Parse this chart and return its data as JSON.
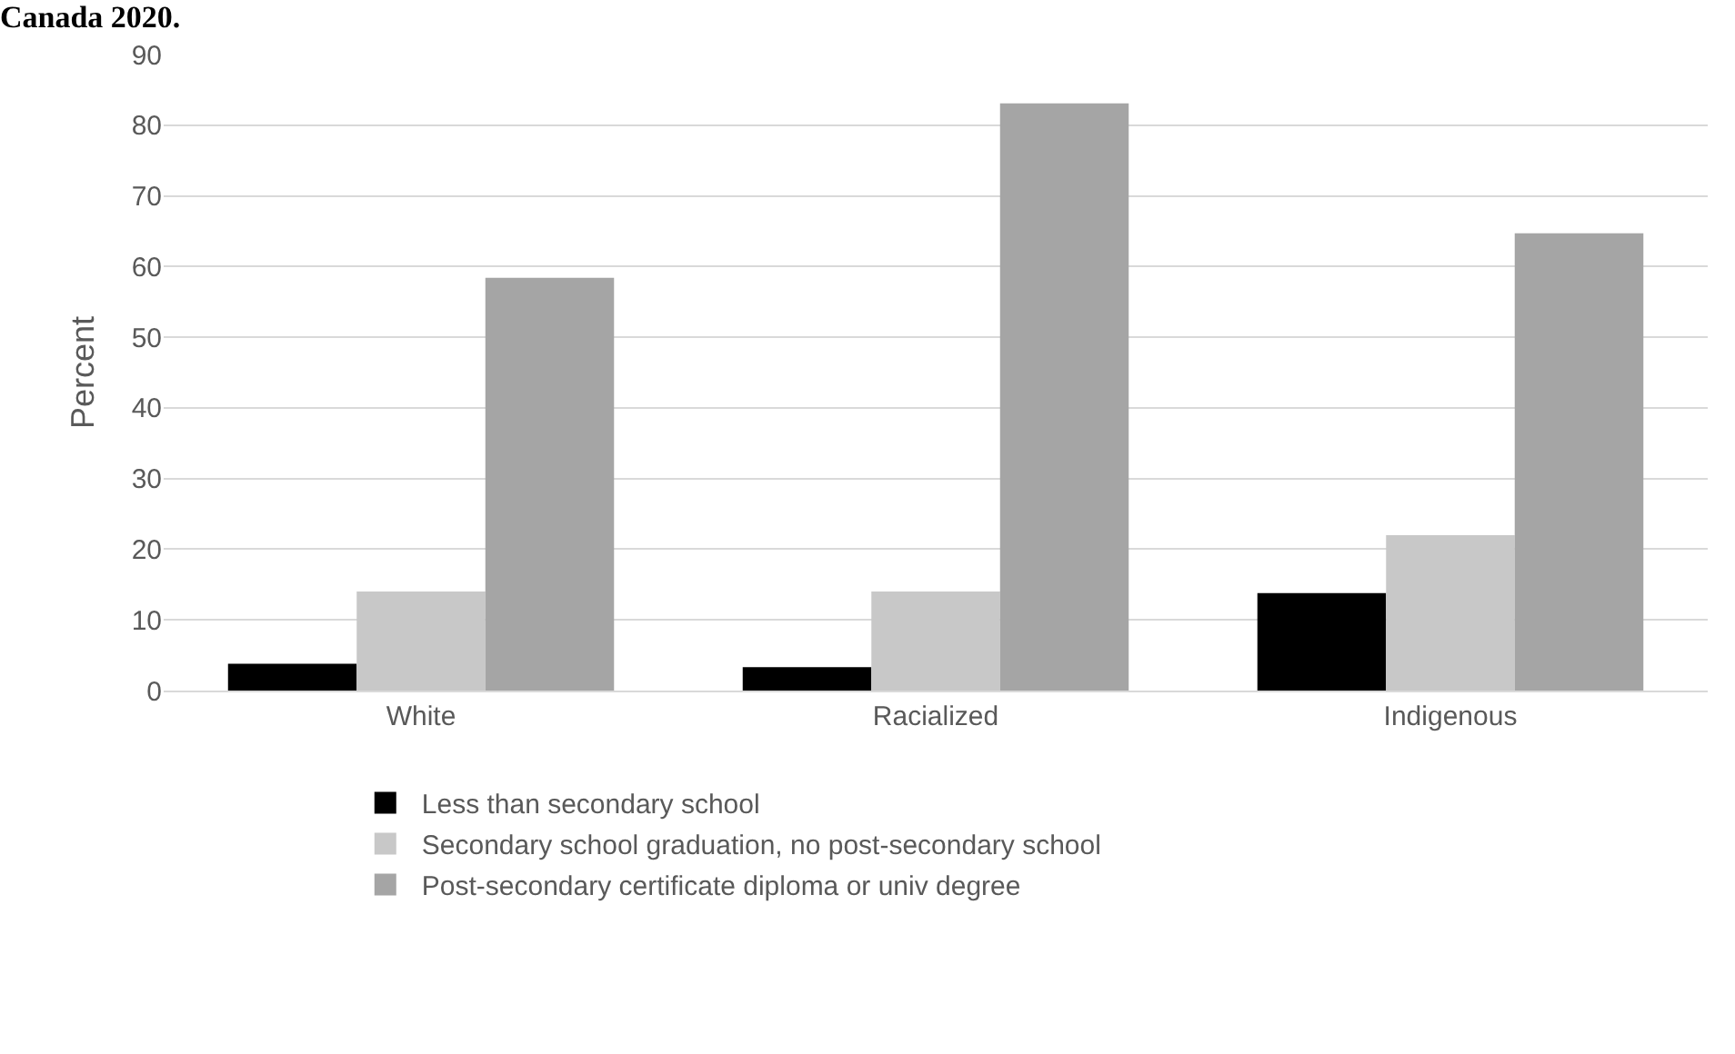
{
  "chart_data": {
    "type": "bar",
    "title": "Canada 2020.",
    "ylabel": "Percent",
    "categories": [
      "White",
      "Racialized",
      "Indigenous"
    ],
    "series": [
      {
        "name": "Less than secondary school",
        "color": "#000000",
        "values": [
          3.8,
          3.3,
          13.8
        ]
      },
      {
        "name": "Secondary school graduation, no post-secondary school",
        "color": "#c8c8c8",
        "values": [
          14.0,
          14.0,
          22.0
        ]
      },
      {
        "name": "Post-secondary certificate diploma or univ degree",
        "color": "#a5a5a5",
        "values": [
          58.4,
          83.1,
          64.7
        ]
      }
    ],
    "ylim": [
      0,
      90
    ],
    "yticks": [
      0,
      10,
      20,
      30,
      40,
      50,
      60,
      70,
      80,
      90
    ],
    "grid": "y",
    "legend": "bottom left"
  }
}
